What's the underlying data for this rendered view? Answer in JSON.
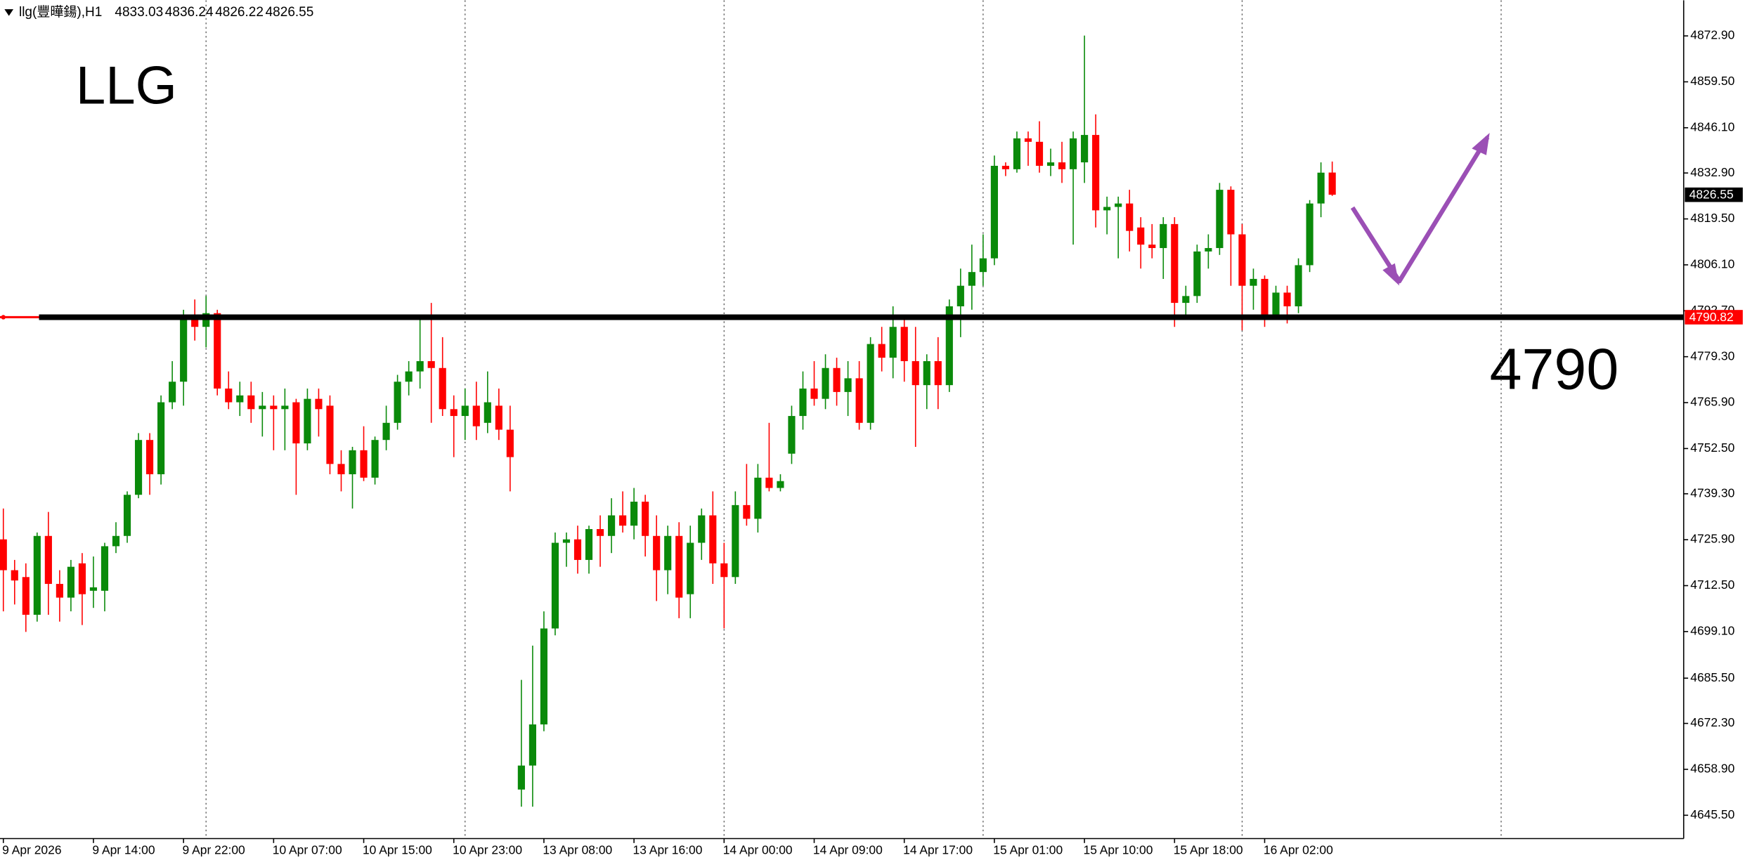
{
  "chart_data": {
    "type": "candlestick",
    "title": "llg(豐曄鍚),H1",
    "annotations": [
      "LLG",
      "4790"
    ],
    "up_color": "#0a8a0a",
    "down_color": "#ff0000",
    "level": 4790.82,
    "level_color": "#000000",
    "ylim": [
      4638.7,
      4883.3
    ],
    "yticks": [
      {
        "value": 4872.9,
        "label": "4872.90"
      },
      {
        "value": 4859.5,
        "label": "4859.50"
      },
      {
        "value": 4846.1,
        "label": "4846.10"
      },
      {
        "value": 4832.9,
        "label": "4832.90"
      },
      {
        "value": 4819.5,
        "label": "4819.50"
      },
      {
        "value": 4806.1,
        "label": "4806.10"
      },
      {
        "value": 4792.7,
        "label": "4792.70"
      },
      {
        "value": 4779.3,
        "label": "4779.30"
      },
      {
        "value": 4765.9,
        "label": "4765.90"
      },
      {
        "value": 4752.5,
        "label": "4752.50"
      },
      {
        "value": 4739.3,
        "label": "4739.30"
      },
      {
        "value": 4725.9,
        "label": "4725.90"
      },
      {
        "value": 4712.5,
        "label": "4712.50"
      },
      {
        "value": 4699.1,
        "label": "4699.10"
      },
      {
        "value": 4685.5,
        "label": "4685.50"
      },
      {
        "value": 4672.3,
        "label": "4672.30"
      },
      {
        "value": 4658.9,
        "label": "4658.90"
      },
      {
        "value": 4645.5,
        "label": "4645.50"
      }
    ],
    "categories": [
      "9 Apr 2026",
      null,
      null,
      null,
      null,
      null,
      null,
      null,
      "9 Apr 14:00",
      null,
      null,
      null,
      null,
      null,
      null,
      null,
      "9 Apr 22:00",
      null,
      null,
      null,
      null,
      null,
      null,
      null,
      "10 Apr 07:00",
      null,
      null,
      null,
      null,
      null,
      null,
      null,
      "10 Apr 15:00",
      null,
      null,
      null,
      null,
      null,
      null,
      null,
      "10 Apr 23:00",
      null,
      null,
      null,
      null,
      null,
      null,
      null,
      "13 Apr 08:00",
      null,
      null,
      null,
      null,
      null,
      null,
      null,
      "13 Apr 16:00",
      null,
      null,
      null,
      null,
      null,
      null,
      null,
      "14 Apr 00:00",
      null,
      null,
      null,
      null,
      null,
      null,
      null,
      "14 Apr 09:00",
      null,
      null,
      null,
      null,
      null,
      null,
      null,
      "14 Apr 17:00",
      null,
      null,
      null,
      null,
      null,
      null,
      null,
      "15 Apr 01:00",
      null,
      null,
      null,
      null,
      null,
      null,
      null,
      "15 Apr 10:00",
      null,
      null,
      null,
      null,
      null,
      null,
      null,
      "15 Apr 18:00",
      null,
      null,
      null,
      null,
      null,
      null,
      null,
      "16 Apr 02:00",
      null,
      null,
      null,
      null,
      null,
      null
    ],
    "candles": [
      {
        "o": 4726,
        "h": 4735,
        "l": 4705,
        "c": 4717
      },
      {
        "o": 4717,
        "h": 4720,
        "l": 4707,
        "c": 4714
      },
      {
        "o": 4715,
        "h": 4719,
        "l": 4699,
        "c": 4704
      },
      {
        "o": 4704,
        "h": 4728,
        "l": 4702,
        "c": 4727
      },
      {
        "o": 4727,
        "h": 4734,
        "l": 4704,
        "c": 4713
      },
      {
        "o": 4713,
        "h": 4717,
        "l": 4702,
        "c": 4709
      },
      {
        "o": 4709,
        "h": 4720,
        "l": 4705,
        "c": 4718
      },
      {
        "o": 4719,
        "h": 4722,
        "l": 4701,
        "c": 4710
      },
      {
        "o": 4711,
        "h": 4721,
        "l": 4706,
        "c": 4712
      },
      {
        "o": 4711,
        "h": 4725,
        "l": 4705,
        "c": 4724
      },
      {
        "o": 4724,
        "h": 4731,
        "l": 4722,
        "c": 4727
      },
      {
        "o": 4727,
        "h": 4740,
        "l": 4725,
        "c": 4739
      },
      {
        "o": 4739,
        "h": 4757,
        "l": 4738,
        "c": 4755
      },
      {
        "o": 4755,
        "h": 4757,
        "l": 4739,
        "c": 4745
      },
      {
        "o": 4745,
        "h": 4768,
        "l": 4742,
        "c": 4766
      },
      {
        "o": 4766,
        "h": 4778,
        "l": 4764,
        "c": 4772
      },
      {
        "o": 4772,
        "h": 4793,
        "l": 4765,
        "c": 4790
      },
      {
        "o": 4790,
        "h": 4796,
        "l": 4784,
        "c": 4788
      },
      {
        "o": 4788,
        "h": 4797,
        "l": 4782,
        "c": 4792
      },
      {
        "o": 4792,
        "h": 4793,
        "l": 4768,
        "c": 4770
      },
      {
        "o": 4770,
        "h": 4775,
        "l": 4764,
        "c": 4766
      },
      {
        "o": 4766,
        "h": 4772,
        "l": 4762,
        "c": 4768
      },
      {
        "o": 4768,
        "h": 4772,
        "l": 4760,
        "c": 4764
      },
      {
        "o": 4764,
        "h": 4769,
        "l": 4756,
        "c": 4765
      },
      {
        "o": 4765,
        "h": 4768,
        "l": 4752,
        "c": 4764
      },
      {
        "o": 4764,
        "h": 4770,
        "l": 4752,
        "c": 4765
      },
      {
        "o": 4766,
        "h": 4767,
        "l": 4739,
        "c": 4754
      },
      {
        "o": 4754,
        "h": 4770,
        "l": 4752,
        "c": 4767
      },
      {
        "o": 4767,
        "h": 4770,
        "l": 4756,
        "c": 4764
      },
      {
        "o": 4765,
        "h": 4768,
        "l": 4745,
        "c": 4748
      },
      {
        "o": 4748,
        "h": 4752,
        "l": 4740,
        "c": 4745
      },
      {
        "o": 4745,
        "h": 4753,
        "l": 4735,
        "c": 4752
      },
      {
        "o": 4752,
        "h": 4759,
        "l": 4743,
        "c": 4744
      },
      {
        "o": 4744,
        "h": 4756,
        "l": 4742,
        "c": 4755
      },
      {
        "o": 4755,
        "h": 4765,
        "l": 4752,
        "c": 4760
      },
      {
        "o": 4760,
        "h": 4774,
        "l": 4758,
        "c": 4772
      },
      {
        "o": 4772,
        "h": 4778,
        "l": 4768,
        "c": 4775
      },
      {
        "o": 4775,
        "h": 4790,
        "l": 4770,
        "c": 4778
      },
      {
        "o": 4778,
        "h": 4795,
        "l": 4760,
        "c": 4776
      },
      {
        "o": 4776,
        "h": 4785,
        "l": 4762,
        "c": 4764
      },
      {
        "o": 4764,
        "h": 4768,
        "l": 4750,
        "c": 4762
      },
      {
        "o": 4762,
        "h": 4770,
        "l": 4755,
        "c": 4765
      },
      {
        "o": 4765,
        "h": 4772,
        "l": 4755,
        "c": 4759
      },
      {
        "o": 4760,
        "h": 4775,
        "l": 4757,
        "c": 4766
      },
      {
        "o": 4765,
        "h": 4770,
        "l": 4755,
        "c": 4758
      },
      {
        "o": 4758,
        "h": 4765,
        "l": 4740,
        "c": 4750
      },
      {
        "o": 4653,
        "h": 4685,
        "l": 4648,
        "c": 4660
      },
      {
        "o": 4660,
        "h": 4695,
        "l": 4648,
        "c": 4672
      },
      {
        "o": 4672,
        "h": 4705,
        "l": 4670,
        "c": 4700
      },
      {
        "o": 4700,
        "h": 4728,
        "l": 4698,
        "c": 4725
      },
      {
        "o": 4725,
        "h": 4728,
        "l": 4718,
        "c": 4726
      },
      {
        "o": 4726,
        "h": 4730,
        "l": 4716,
        "c": 4720
      },
      {
        "o": 4720,
        "h": 4730,
        "l": 4716,
        "c": 4729
      },
      {
        "o": 4729,
        "h": 4733,
        "l": 4718,
        "c": 4727
      },
      {
        "o": 4727,
        "h": 4738,
        "l": 4722,
        "c": 4733
      },
      {
        "o": 4733,
        "h": 4740,
        "l": 4728,
        "c": 4730
      },
      {
        "o": 4730,
        "h": 4741,
        "l": 4726,
        "c": 4737
      },
      {
        "o": 4737,
        "h": 4739,
        "l": 4721,
        "c": 4727
      },
      {
        "o": 4727,
        "h": 4733,
        "l": 4708,
        "c": 4717
      },
      {
        "o": 4717,
        "h": 4730,
        "l": 4710,
        "c": 4727
      },
      {
        "o": 4727,
        "h": 4731,
        "l": 4703,
        "c": 4709
      },
      {
        "o": 4710,
        "h": 4730,
        "l": 4703,
        "c": 4725
      },
      {
        "o": 4725,
        "h": 4735,
        "l": 4720,
        "c": 4733
      },
      {
        "o": 4733,
        "h": 4740,
        "l": 4713,
        "c": 4719
      },
      {
        "o": 4719,
        "h": 4725,
        "l": 4700,
        "c": 4715
      },
      {
        "o": 4715,
        "h": 4740,
        "l": 4713,
        "c": 4736
      },
      {
        "o": 4736,
        "h": 4748,
        "l": 4730,
        "c": 4732
      },
      {
        "o": 4732,
        "h": 4748,
        "l": 4728,
        "c": 4744
      },
      {
        "o": 4744,
        "h": 4760,
        "l": 4740,
        "c": 4741
      },
      {
        "o": 4741,
        "h": 4745,
        "l": 4740,
        "c": 4743
      },
      {
        "o": 4751,
        "h": 4765,
        "l": 4748,
        "c": 4762
      },
      {
        "o": 4762,
        "h": 4775,
        "l": 4758,
        "c": 4770
      },
      {
        "o": 4770,
        "h": 4778,
        "l": 4765,
        "c": 4767
      },
      {
        "o": 4767,
        "h": 4780,
        "l": 4764,
        "c": 4776
      },
      {
        "o": 4776,
        "h": 4779,
        "l": 4765,
        "c": 4769
      },
      {
        "o": 4769,
        "h": 4778,
        "l": 4762,
        "c": 4773
      },
      {
        "o": 4773,
        "h": 4778,
        "l": 4758,
        "c": 4760
      },
      {
        "o": 4760,
        "h": 4785,
        "l": 4758,
        "c": 4783
      },
      {
        "o": 4783,
        "h": 4788,
        "l": 4775,
        "c": 4779
      },
      {
        "o": 4779,
        "h": 4794,
        "l": 4773,
        "c": 4788
      },
      {
        "o": 4788,
        "h": 4790,
        "l": 4772,
        "c": 4778
      },
      {
        "o": 4778,
        "h": 4788,
        "l": 4753,
        "c": 4771
      },
      {
        "o": 4771,
        "h": 4780,
        "l": 4764,
        "c": 4778
      },
      {
        "o": 4778,
        "h": 4785,
        "l": 4764,
        "c": 4771
      },
      {
        "o": 4771,
        "h": 4796,
        "l": 4769,
        "c": 4794
      },
      {
        "o": 4794,
        "h": 4805,
        "l": 4785,
        "c": 4800
      },
      {
        "o": 4800,
        "h": 4812,
        "l": 4793,
        "c": 4804
      },
      {
        "o": 4804,
        "h": 4815,
        "l": 4800,
        "c": 4808
      },
      {
        "o": 4808,
        "h": 4838,
        "l": 4806,
        "c": 4835
      },
      {
        "o": 4835,
        "h": 4836,
        "l": 4832,
        "c": 4834
      },
      {
        "o": 4834,
        "h": 4845,
        "l": 4833,
        "c": 4843
      },
      {
        "o": 4843,
        "h": 4845,
        "l": 4835,
        "c": 4842
      },
      {
        "o": 4842,
        "h": 4848,
        "l": 4833,
        "c": 4835
      },
      {
        "o": 4835,
        "h": 4840,
        "l": 4832,
        "c": 4836
      },
      {
        "o": 4836,
        "h": 4842,
        "l": 4830,
        "c": 4834
      },
      {
        "o": 4834,
        "h": 4845,
        "l": 4812,
        "c": 4843
      },
      {
        "o": 4836,
        "h": 4873,
        "l": 4830,
        "c": 4844
      },
      {
        "o": 4844,
        "h": 4850,
        "l": 4817,
        "c": 4822
      },
      {
        "o": 4822,
        "h": 4826,
        "l": 4815,
        "c": 4823
      },
      {
        "o": 4823,
        "h": 4826,
        "l": 4808,
        "c": 4824
      },
      {
        "o": 4824,
        "h": 4828,
        "l": 4810,
        "c": 4816
      },
      {
        "o": 4817,
        "h": 4820,
        "l": 4805,
        "c": 4812
      },
      {
        "o": 4812,
        "h": 4818,
        "l": 4808,
        "c": 4811
      },
      {
        "o": 4811,
        "h": 4820,
        "l": 4802,
        "c": 4818
      },
      {
        "o": 4818,
        "h": 4820,
        "l": 4788,
        "c": 4795
      },
      {
        "o": 4795,
        "h": 4800,
        "l": 4790,
        "c": 4797
      },
      {
        "o": 4797,
        "h": 4812,
        "l": 4795,
        "c": 4810
      },
      {
        "o": 4810,
        "h": 4815,
        "l": 4805,
        "c": 4811
      },
      {
        "o": 4811,
        "h": 4830,
        "l": 4809,
        "c": 4828
      },
      {
        "o": 4828,
        "h": 4829,
        "l": 4800,
        "c": 4815
      },
      {
        "o": 4815,
        "h": 4818,
        "l": 4787,
        "c": 4800
      },
      {
        "o": 4800,
        "h": 4805,
        "l": 4793,
        "c": 4802
      },
      {
        "o": 4802,
        "h": 4803,
        "l": 4788,
        "c": 4791
      },
      {
        "o": 4791,
        "h": 4800,
        "l": 4790,
        "c": 4798
      },
      {
        "o": 4798,
        "h": 4800,
        "l": 4789,
        "c": 4794
      },
      {
        "o": 4794,
        "h": 4808,
        "l": 4792,
        "c": 4806
      },
      {
        "o": 4806,
        "h": 4825,
        "l": 4804,
        "c": 4824
      },
      {
        "o": 4824,
        "h": 4836,
        "l": 4820,
        "c": 4833
      },
      {
        "o": 4833.03,
        "h": 4836.24,
        "l": 4826.22,
        "c": 4826.55
      }
    ]
  }
}
